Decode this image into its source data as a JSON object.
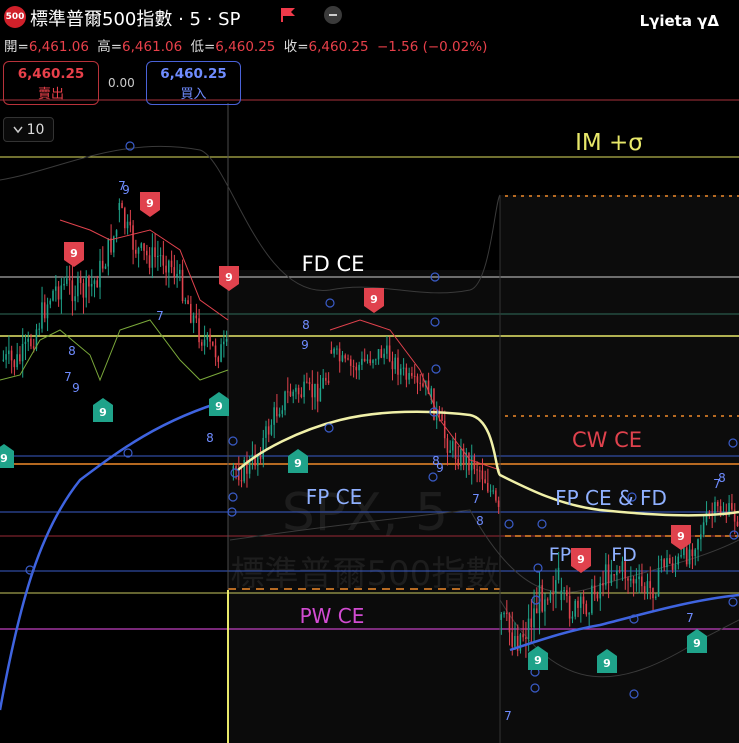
{
  "header": {
    "logo_text": "500",
    "title": "標準普爾500指數 · 5 · SP",
    "watermark": "Lγieta γΔ",
    "icons": [
      "flag-icon",
      "minus-circle-icon"
    ]
  },
  "ohlc": {
    "open_label": "開=",
    "open": "6,461.06",
    "high_label": "高=",
    "high": "6,461.06",
    "low_label": "低=",
    "low": "6,460.25",
    "close_label": "收=",
    "close": "6,460.25",
    "change": "−1.56 (−0.02%)"
  },
  "trade": {
    "sell_price": "6,460.25",
    "sell_label": "賣出",
    "spread": "0.00",
    "buy_price": "6,460.25",
    "buy_label": "買入"
  },
  "interval": {
    "value": "10"
  },
  "colors": {
    "up": "#1fa38a",
    "down": "#e0424d",
    "vwap": "#3f64e0",
    "mid": "#f0f0a8",
    "yellow": "#e8e86a",
    "magenta": "#d24bd2",
    "orange": "#f08a2a",
    "blue_line": "#3a5cc8"
  },
  "chart_data": {
    "type": "candlestick",
    "symbol_watermark": "SPX, 5",
    "name_watermark": "標準普爾500指數",
    "levels": [
      {
        "label": "IM +σ",
        "color": "#e8e86a"
      },
      {
        "label": "FD CE",
        "color": "#ffffff"
      },
      {
        "label": "CW CE",
        "color": "#e0424d"
      },
      {
        "label": "FP CE",
        "color": "#8fb0ff"
      },
      {
        "label": "FP CE & FD",
        "color": "#8fb0ff"
      },
      {
        "label": "FP",
        "color": "#8fb0ff"
      },
      {
        "label": "FD",
        "color": "#8fb0ff"
      },
      {
        "label": "PW CE",
        "color": "#d24bd2"
      }
    ],
    "sequential_counts_down": [
      "9",
      "9",
      "9",
      "9",
      "9",
      "9",
      "9"
    ],
    "sequential_counts_up": [
      "9",
      "9",
      "9",
      "9",
      "9",
      "9",
      "9",
      "9"
    ]
  }
}
